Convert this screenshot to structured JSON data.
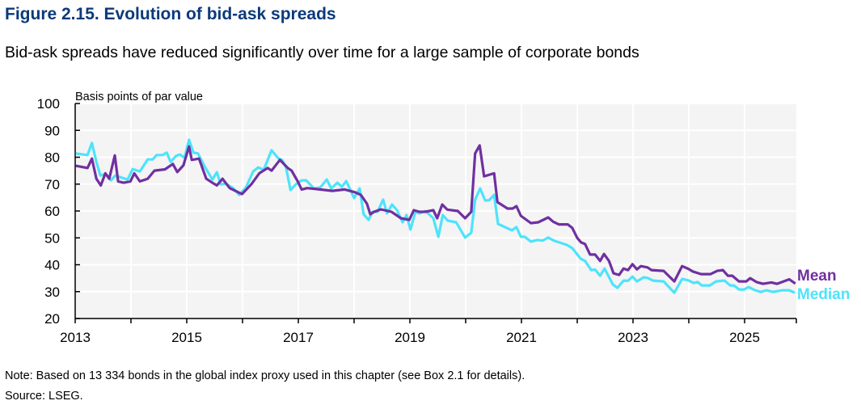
{
  "title": "Figure 2.15. Evolution of bid-ask spreads",
  "subtitle": "Bid-ask spreads have reduced significantly over time for a large sample of corporate bonds",
  "note": "Note: Based on 13 334 bonds in the global index proxy used in this chapter (see Box 2.1 for details).",
  "source": "Source: LSEG.",
  "chart_data": {
    "type": "line",
    "ylabel": "Basis points of par value",
    "xlabel": "",
    "ylim": [
      20,
      100
    ],
    "xlim": [
      2013,
      2025.92
    ],
    "yticks": [
      20,
      30,
      40,
      50,
      60,
      70,
      80,
      90,
      100
    ],
    "xtick_labels": [
      "2013",
      "2015",
      "2017",
      "2019",
      "2021",
      "2023",
      "2025"
    ],
    "grid": true,
    "legend_placement": "right, inline at line ends",
    "colors": {
      "Mean": "#7030a0",
      "Median": "#4ee3fb",
      "title": "#0b3a7a",
      "plot_bg": "#f4f4f4"
    },
    "series": [
      {
        "name": "Mean",
        "points": [
          [
            2013.01,
            76.8
          ],
          [
            2013.22,
            76
          ],
          [
            2013.3,
            79.5
          ],
          [
            2013.38,
            72
          ],
          [
            2013.46,
            69.5
          ],
          [
            2013.54,
            74
          ],
          [
            2013.61,
            72
          ],
          [
            2013.71,
            80.7
          ],
          [
            2013.77,
            71
          ],
          [
            2013.87,
            70.5
          ],
          [
            2013.99,
            71
          ],
          [
            2014.06,
            74
          ],
          [
            2014.16,
            71
          ],
          [
            2014.3,
            72
          ],
          [
            2014.42,
            75
          ],
          [
            2014.61,
            75.5
          ],
          [
            2014.75,
            77.5
          ],
          [
            2014.83,
            74.5
          ],
          [
            2014.94,
            77
          ],
          [
            2015.04,
            84
          ],
          [
            2015.09,
            79
          ],
          [
            2015.22,
            79.5
          ],
          [
            2015.35,
            72
          ],
          [
            2015.46,
            70.5
          ],
          [
            2015.54,
            69.5
          ],
          [
            2015.64,
            72
          ],
          [
            2015.77,
            68.5
          ],
          [
            2015.99,
            66.3
          ],
          [
            2016.16,
            70
          ],
          [
            2016.3,
            74
          ],
          [
            2016.45,
            76
          ],
          [
            2016.52,
            75
          ],
          [
            2016.67,
            79
          ],
          [
            2016.81,
            76
          ],
          [
            2016.88,
            75
          ],
          [
            2016.99,
            71
          ],
          [
            2017.06,
            68
          ],
          [
            2017.16,
            68.5
          ],
          [
            2017.39,
            68
          ],
          [
            2017.61,
            67.5
          ],
          [
            2017.83,
            68
          ],
          [
            2018.01,
            67
          ],
          [
            2018.12,
            66
          ],
          [
            2018.23,
            62.7
          ],
          [
            2018.29,
            58.8
          ],
          [
            2018.36,
            59.7
          ],
          [
            2018.48,
            60.6
          ],
          [
            2018.67,
            59.7
          ],
          [
            2018.84,
            57.3
          ],
          [
            2018.99,
            56.7
          ],
          [
            2019.07,
            60.3
          ],
          [
            2019.17,
            59.7
          ],
          [
            2019.28,
            59.7
          ],
          [
            2019.42,
            60.3
          ],
          [
            2019.49,
            57.3
          ],
          [
            2019.58,
            62.4
          ],
          [
            2019.67,
            60.5
          ],
          [
            2019.86,
            60
          ],
          [
            2019.99,
            57.3
          ],
          [
            2020.1,
            59.7
          ],
          [
            2020.17,
            81.4
          ],
          [
            2020.25,
            84.4
          ],
          [
            2020.33,
            72.9
          ],
          [
            2020.51,
            74
          ],
          [
            2020.57,
            63.3
          ],
          [
            2020.75,
            60.9
          ],
          [
            2020.84,
            60.9
          ],
          [
            2020.91,
            61.8
          ],
          [
            2020.99,
            58.2
          ],
          [
            2021.09,
            56.7
          ],
          [
            2021.17,
            55.5
          ],
          [
            2021.3,
            55.8
          ],
          [
            2021.48,
            57.6
          ],
          [
            2021.57,
            56
          ],
          [
            2021.67,
            55
          ],
          [
            2021.83,
            55
          ],
          [
            2021.91,
            53.7
          ],
          [
            2022.0,
            50
          ],
          [
            2022.07,
            48.3
          ],
          [
            2022.14,
            47.7
          ],
          [
            2022.23,
            43.8
          ],
          [
            2022.32,
            43.8
          ],
          [
            2022.41,
            41.4
          ],
          [
            2022.48,
            44
          ],
          [
            2022.57,
            41.4
          ],
          [
            2022.65,
            36.8
          ],
          [
            2022.75,
            36.2
          ],
          [
            2022.83,
            38.6
          ],
          [
            2022.91,
            38
          ],
          [
            2022.99,
            40.2
          ],
          [
            2023.07,
            38.3
          ],
          [
            2023.14,
            39.5
          ],
          [
            2023.26,
            39
          ],
          [
            2023.33,
            38
          ],
          [
            2023.55,
            37.7
          ],
          [
            2023.74,
            33.8
          ],
          [
            2023.88,
            39.5
          ],
          [
            2023.99,
            38.5
          ],
          [
            2024.07,
            37.5
          ],
          [
            2024.22,
            36.5
          ],
          [
            2024.39,
            36.5
          ],
          [
            2024.51,
            37.7
          ],
          [
            2024.61,
            38
          ],
          [
            2024.7,
            35.9
          ],
          [
            2024.78,
            35.9
          ],
          [
            2024.9,
            33.8
          ],
          [
            2025.03,
            33.8
          ],
          [
            2025.1,
            35
          ],
          [
            2025.22,
            33.5
          ],
          [
            2025.33,
            32.9
          ],
          [
            2025.48,
            33.4
          ],
          [
            2025.58,
            32.9
          ],
          [
            2025.7,
            33.8
          ],
          [
            2025.8,
            34.6
          ],
          [
            2025.91,
            33
          ]
        ]
      },
      {
        "name": "Median",
        "points": [
          [
            2013.01,
            81.4
          ],
          [
            2013.22,
            80.8
          ],
          [
            2013.3,
            85.3
          ],
          [
            2013.38,
            78.3
          ],
          [
            2013.45,
            73.2
          ],
          [
            2013.55,
            73.8
          ],
          [
            2013.64,
            71.4
          ],
          [
            2013.72,
            73.2
          ],
          [
            2013.94,
            71.7
          ],
          [
            2014.03,
            75.6
          ],
          [
            2014.16,
            74.7
          ],
          [
            2014.3,
            79.2
          ],
          [
            2014.39,
            79.2
          ],
          [
            2014.46,
            80.8
          ],
          [
            2014.57,
            80.8
          ],
          [
            2014.64,
            81.7
          ],
          [
            2014.71,
            78.3
          ],
          [
            2014.81,
            80.5
          ],
          [
            2014.88,
            81
          ],
          [
            2014.96,
            79.8
          ],
          [
            2015.04,
            86.5
          ],
          [
            2015.12,
            81.7
          ],
          [
            2015.2,
            81.4
          ],
          [
            2015.33,
            76.2
          ],
          [
            2015.46,
            71.7
          ],
          [
            2015.54,
            74.4
          ],
          [
            2015.61,
            69.9
          ],
          [
            2015.7,
            70.2
          ],
          [
            2015.83,
            68.5
          ],
          [
            2015.94,
            66
          ],
          [
            2016.06,
            68.7
          ],
          [
            2016.19,
            74.7
          ],
          [
            2016.28,
            76.2
          ],
          [
            2016.38,
            75.3
          ],
          [
            2016.52,
            82.6
          ],
          [
            2016.64,
            79.6
          ],
          [
            2016.71,
            79
          ],
          [
            2016.78,
            76.2
          ],
          [
            2016.86,
            67.8
          ],
          [
            2016.96,
            70
          ],
          [
            2017.06,
            71.4
          ],
          [
            2017.14,
            71.4
          ],
          [
            2017.28,
            68.4
          ],
          [
            2017.39,
            68.7
          ],
          [
            2017.51,
            71.7
          ],
          [
            2017.59,
            68.4
          ],
          [
            2017.7,
            70.5
          ],
          [
            2017.78,
            69
          ],
          [
            2017.86,
            71.1
          ],
          [
            2018.0,
            64.8
          ],
          [
            2018.1,
            68.4
          ],
          [
            2018.17,
            58.8
          ],
          [
            2018.26,
            56.7
          ],
          [
            2018.33,
            59.7
          ],
          [
            2018.42,
            59.7
          ],
          [
            2018.52,
            64.2
          ],
          [
            2018.59,
            59.1
          ],
          [
            2018.68,
            62.4
          ],
          [
            2018.77,
            60.3
          ],
          [
            2018.87,
            55.8
          ],
          [
            2018.94,
            58.5
          ],
          [
            2019.01,
            53.1
          ],
          [
            2019.1,
            59.7
          ],
          [
            2019.17,
            59.1
          ],
          [
            2019.28,
            60
          ],
          [
            2019.42,
            57.3
          ],
          [
            2019.51,
            50.4
          ],
          [
            2019.59,
            58.5
          ],
          [
            2019.68,
            56.4
          ],
          [
            2019.83,
            55.8
          ],
          [
            2019.99,
            50.1
          ],
          [
            2020.1,
            51.9
          ],
          [
            2020.17,
            64.2
          ],
          [
            2020.26,
            68.4
          ],
          [
            2020.35,
            63.9
          ],
          [
            2020.42,
            64
          ],
          [
            2020.51,
            66
          ],
          [
            2020.58,
            55.2
          ],
          [
            2020.83,
            52.8
          ],
          [
            2020.91,
            54
          ],
          [
            2020.99,
            50.4
          ],
          [
            2021.06,
            50.4
          ],
          [
            2021.17,
            48.6
          ],
          [
            2021.28,
            49.2
          ],
          [
            2021.38,
            49
          ],
          [
            2021.48,
            50.1
          ],
          [
            2021.59,
            48.9
          ],
          [
            2021.81,
            47.4
          ],
          [
            2021.91,
            46.2
          ],
          [
            2022.06,
            42.3
          ],
          [
            2022.14,
            41.4
          ],
          [
            2022.25,
            38
          ],
          [
            2022.32,
            38.2
          ],
          [
            2022.41,
            35.9
          ],
          [
            2022.49,
            38.6
          ],
          [
            2022.64,
            32.6
          ],
          [
            2022.72,
            31.4
          ],
          [
            2022.83,
            34.1
          ],
          [
            2022.91,
            34
          ],
          [
            2022.99,
            35.6
          ],
          [
            2023.07,
            33.8
          ],
          [
            2023.19,
            35.3
          ],
          [
            2023.26,
            35.1
          ],
          [
            2023.36,
            34.1
          ],
          [
            2023.55,
            33.8
          ],
          [
            2023.74,
            29.6
          ],
          [
            2023.88,
            34.7
          ],
          [
            2023.99,
            34.2
          ],
          [
            2024.09,
            33.2
          ],
          [
            2024.16,
            33.6
          ],
          [
            2024.23,
            32.3
          ],
          [
            2024.38,
            32.3
          ],
          [
            2024.49,
            33.8
          ],
          [
            2024.64,
            34.1
          ],
          [
            2024.74,
            32.3
          ],
          [
            2024.81,
            32.3
          ],
          [
            2024.9,
            30.8
          ],
          [
            2024.99,
            30.8
          ],
          [
            2025.07,
            31.7
          ],
          [
            2025.19,
            30.5
          ],
          [
            2025.29,
            29.9
          ],
          [
            2025.39,
            30.5
          ],
          [
            2025.51,
            29.9
          ],
          [
            2025.68,
            30.5
          ],
          [
            2025.8,
            30.5
          ],
          [
            2025.9,
            29.6
          ]
        ]
      }
    ]
  }
}
